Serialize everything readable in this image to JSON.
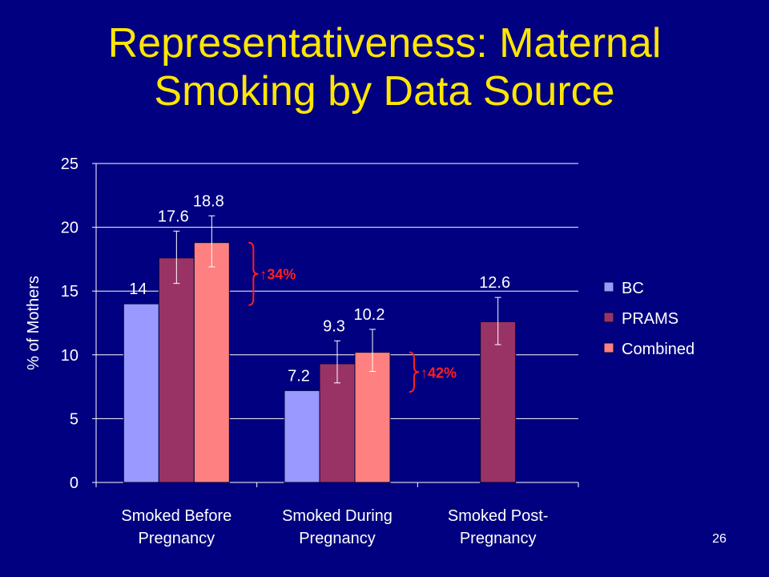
{
  "slide": {
    "title": "Representativeness: Maternal Smoking by Data Source",
    "page_number": "26"
  },
  "colors": {
    "background": "#000080",
    "title": "#FFE600",
    "annotation": "#FF2020",
    "BC": "#9999FF",
    "PRAMS": "#993366",
    "Combined": "#FF8080"
  },
  "chart_data": {
    "type": "bar",
    "title": "",
    "xlabel": "",
    "ylabel": "% of Mothers",
    "ylim": [
      0,
      25
    ],
    "yticks": [
      0,
      5,
      10,
      15,
      20,
      25
    ],
    "grid": true,
    "legend_position": "right",
    "categories": [
      [
        "Smoked Before",
        "Pregnancy"
      ],
      [
        "Smoked During",
        "Pregnancy"
      ],
      [
        "Smoked Post-",
        "Pregnancy"
      ]
    ],
    "series": [
      {
        "name": "BC",
        "color": "#9999FF",
        "values": [
          14,
          7.2,
          null
        ],
        "labels": [
          "14",
          "7.2",
          null
        ],
        "errors": [
          null,
          null,
          null
        ]
      },
      {
        "name": "PRAMS",
        "color": "#993366",
        "values": [
          17.6,
          9.3,
          12.6
        ],
        "labels": [
          "17.6",
          "9.3",
          "12.6"
        ],
        "errors": [
          [
            15.6,
            19.7
          ],
          [
            7.8,
            11.1
          ],
          [
            10.8,
            14.5
          ]
        ]
      },
      {
        "name": "Combined",
        "color": "#FF8080",
        "values": [
          18.8,
          10.2,
          null
        ],
        "labels": [
          "18.8",
          "10.2",
          null
        ],
        "errors": [
          [
            16.9,
            20.9
          ],
          [
            8.7,
            12.0
          ],
          null
        ]
      }
    ],
    "annotations": [
      {
        "text": "↑34%",
        "category": 0,
        "range": [
          13.9,
          18.8
        ]
      },
      {
        "text": "↑42%",
        "category": 1,
        "range": [
          7.1,
          10.2
        ]
      }
    ]
  }
}
